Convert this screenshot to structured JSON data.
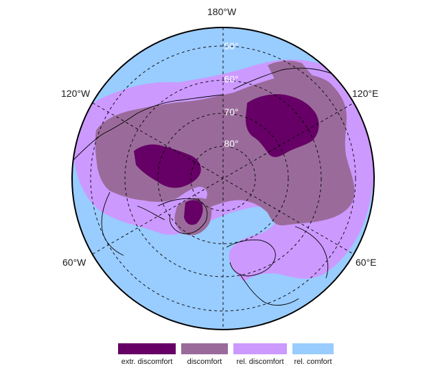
{
  "map": {
    "projection": "north polar stereographic",
    "longitude_labels": {
      "top": "180°W",
      "upper_left": "120°W",
      "upper_right": "120°E",
      "lower_left": "60°W",
      "lower_right": "60°E"
    },
    "latitude_labels": [
      "50°",
      "60°",
      "70°",
      "80°"
    ],
    "graticule": "dashed",
    "coastlines": true,
    "country_borders": true
  },
  "legend": {
    "placement": "bottom-center",
    "items": [
      {
        "label": "extr. discomfort",
        "color": "#660066"
      },
      {
        "label": "discomfort",
        "color": "#9a6b9a"
      },
      {
        "label": "rel. discomfort",
        "color": "#cc99ff"
      },
      {
        "label": "rel. comfort",
        "color": "#99ccff"
      }
    ]
  }
}
